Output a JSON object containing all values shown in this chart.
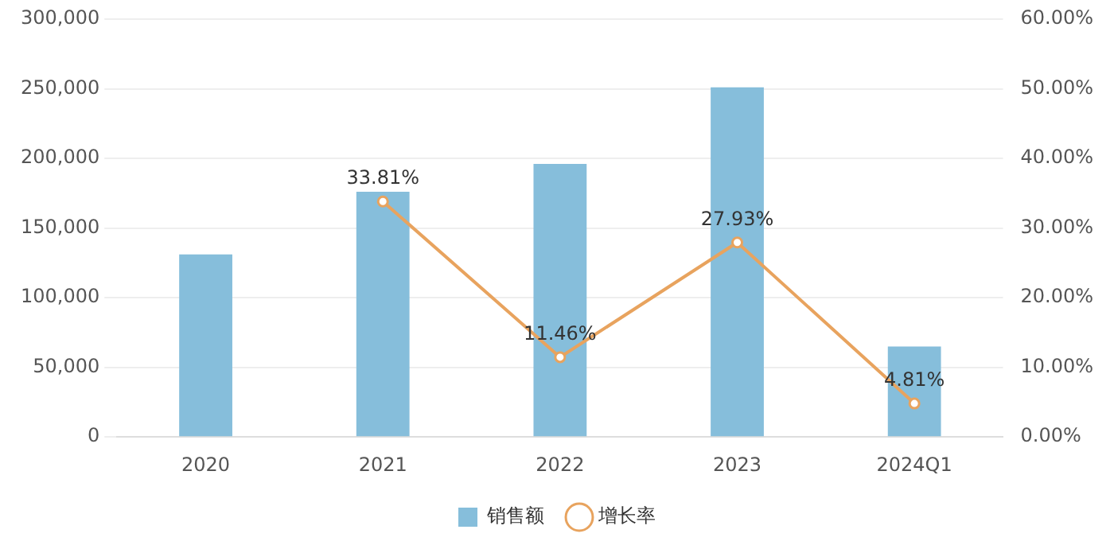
{
  "chart_data": {
    "type": "bar",
    "categories": [
      "2020",
      "2021",
      "2022",
      "2023",
      "2024Q1"
    ],
    "series": [
      {
        "name": "销售额",
        "color": "#86bedb",
        "values": [
          131000,
          176000,
          196000,
          251000,
          65000
        ]
      },
      {
        "name": "增长率",
        "type": "line",
        "axis": "y2",
        "color": "#e8a35e",
        "values": [
          null,
          33.81,
          11.46,
          27.93,
          4.81
        ],
        "value_labels": [
          null,
          "33.81%",
          "11.46%",
          "27.93%",
          "4.81%"
        ]
      }
    ],
    "ylim": [
      0,
      300000
    ],
    "yticks": [
      {
        "value": 0,
        "label": "0"
      },
      {
        "value": 50000,
        "label": "50,000"
      },
      {
        "value": 100000,
        "label": "100,000"
      },
      {
        "value": 150000,
        "label": "150,000"
      },
      {
        "value": 200000,
        "label": "200,000"
      },
      {
        "value": 250000,
        "label": "250,000"
      },
      {
        "value": 300000,
        "label": "300,000"
      }
    ],
    "y2lim": [
      0,
      60
    ],
    "y2ticks": [
      {
        "value": 0,
        "label": "0.00%"
      },
      {
        "value": 10,
        "label": "10.00%"
      },
      {
        "value": 20,
        "label": "20.00%"
      },
      {
        "value": 30,
        "label": "30.00%"
      },
      {
        "value": 40,
        "label": "40.00%"
      },
      {
        "value": 50,
        "label": "50.00%"
      },
      {
        "value": 60,
        "label": "60.00%"
      }
    ],
    "grid": "y",
    "legend": "bottom",
    "marker": "circle"
  }
}
